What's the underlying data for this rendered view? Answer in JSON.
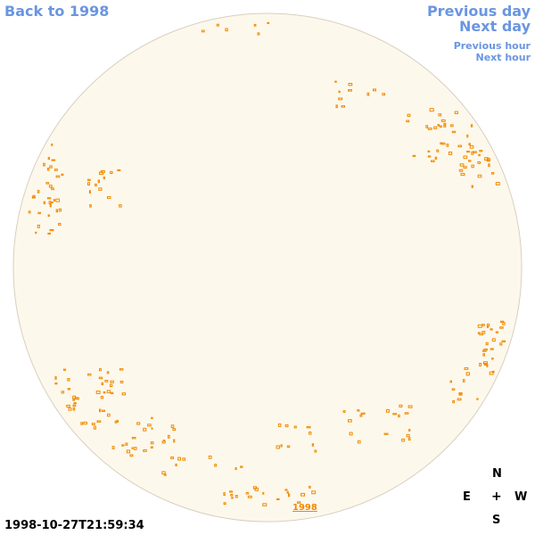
{
  "nav": {
    "back_to_year": "Back to 1998",
    "previous_day": "Previous day",
    "next_day": "Next day",
    "previous_hour": "Previous hour",
    "next_hour": "Next hour"
  },
  "timestamp": "1998-10-27T21:59:34",
  "compass": {
    "north": "N",
    "east": "E",
    "center": "+",
    "west": "W",
    "south": "S"
  },
  "disk": {
    "year_label": "1998"
  },
  "colors": {
    "link": "#6a96e0",
    "disk_fill": "#fdf8ec",
    "disk_edge": "#d8cfc0",
    "feature": "#ef8a00"
  },
  "icons": {
    "compass_center": "crosshair-icon"
  }
}
